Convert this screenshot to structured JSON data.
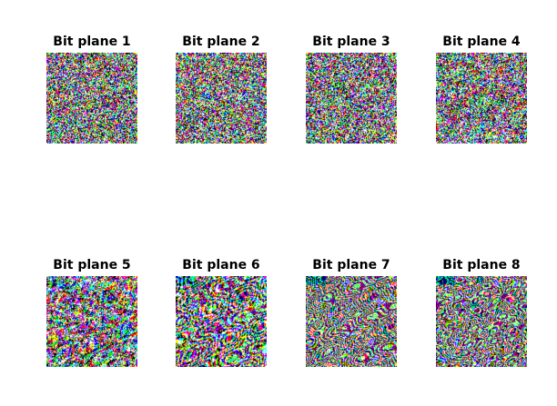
{
  "titles": [
    "Bit plane 1",
    "Bit plane 2",
    "Bit plane 3",
    "Bit plane 4",
    "Bit plane 5",
    "Bit plane 6",
    "Bit plane 7",
    "Bit plane 8"
  ],
  "palette": [
    "#000000",
    "#ffffff",
    "#ff0000",
    "#00ff00",
    "#0000ff",
    "#ffff00",
    "#ff00ff",
    "#00ffff"
  ]
}
